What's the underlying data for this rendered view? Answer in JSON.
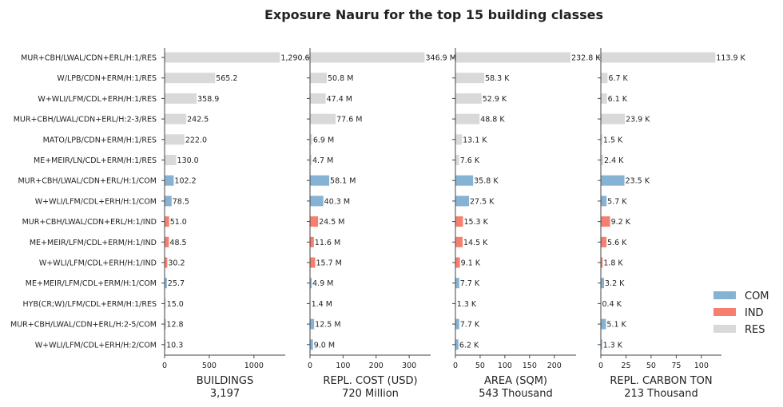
{
  "chart_data": {
    "type": "bar",
    "orientation": "horizontal",
    "title": "Exposure Nauru for the top 15 building classes",
    "categories": [
      "MUR+CBH/LWAL/CDN+ERL/H:1/RES",
      "W/LPB/CDN+ERM/H:1/RES",
      "W+WLI/LFM/CDL+ERH/H:1/RES",
      "MUR+CBH/LWAL/CDN+ERL/H:2-3/RES",
      "MATO/LPB/CDN+ERM/H:1/RES",
      "ME+MEIR/LN/CDL+ERM/H:1/RES",
      "MUR+CBH/LWAL/CDN+ERL/H:1/COM",
      "W+WLI/LFM/CDL+ERH/H:1/COM",
      "MUR+CBH/LWAL/CDN+ERL/H:1/IND",
      "ME+MEIR/LFM/CDL+ERM/H:1/IND",
      "W+WLI/LFM/CDL+ERH/H:1/IND",
      "ME+MEIR/LFM/CDL+ERM/H:1/COM",
      "HYB(CR;W)/LFM/CDL+ERM/H:1/RES",
      "MUR+CBH/LWAL/CDN+ERL/H:2-5/COM",
      "W+WLI/LFM/CDL+ERH/H:2/COM"
    ],
    "occupancy": [
      "RES",
      "RES",
      "RES",
      "RES",
      "RES",
      "RES",
      "COM",
      "COM",
      "IND",
      "IND",
      "IND",
      "COM",
      "RES",
      "COM",
      "COM"
    ],
    "panels": [
      {
        "name": "buildings",
        "xlabel": "BUILDINGS",
        "total": "3,197",
        "xlim": [
          0,
          1350
        ],
        "ticks": [
          0,
          500,
          1000
        ],
        "values": [
          1290.6,
          565.2,
          358.9,
          242.5,
          222.0,
          130.0,
          102.2,
          78.5,
          51.0,
          48.5,
          30.2,
          25.7,
          15.0,
          12.8,
          10.3
        ],
        "labels": [
          "1,290.6",
          "565.2",
          "358.9",
          "242.5",
          "222.0",
          "130.0",
          "102.2",
          "78.5",
          "51.0",
          "48.5",
          "30.2",
          "25.7",
          "15.0",
          "12.8",
          "10.3"
        ]
      },
      {
        "name": "repl-cost",
        "xlabel": "REPL. COST (USD)",
        "total": "720 Million",
        "xlim": [
          0,
          365
        ],
        "ticks": [
          0,
          100,
          200,
          300
        ],
        "values": [
          346.9,
          50.8,
          47.4,
          77.6,
          6.9,
          4.7,
          58.1,
          40.3,
          24.5,
          11.6,
          15.7,
          4.9,
          1.4,
          12.5,
          9.0
        ],
        "labels": [
          "346.9 M",
          "50.8 M",
          "47.4 M",
          "77.6 M",
          "6.9 M",
          "4.7 M",
          "58.1 M",
          "40.3 M",
          "24.5 M",
          "11.6 M",
          "15.7 M",
          "4.9 M",
          "1.4 M",
          "12.5 M",
          "9.0 M"
        ]
      },
      {
        "name": "area",
        "xlabel": "AREA (SQM)",
        "total": "543 Thousand",
        "xlim": [
          0,
          244
        ],
        "ticks": [
          0,
          50,
          100,
          150,
          200
        ],
        "values": [
          232.8,
          58.3,
          52.9,
          48.8,
          13.1,
          7.6,
          35.8,
          27.5,
          15.3,
          14.5,
          9.1,
          7.7,
          1.3,
          7.7,
          6.2
        ],
        "labels": [
          "232.8 K",
          "58.3 K",
          "52.9 K",
          "48.8 K",
          "13.1 K",
          "7.6 K",
          "35.8 K",
          "27.5 K",
          "15.3 K",
          "14.5 K",
          "9.1 K",
          "7.7 K",
          "1.3 K",
          "7.7 K",
          "6.2 K"
        ]
      },
      {
        "name": "repl-carbon",
        "xlabel": "REPL. CARBON TON",
        "total": "213 Thousand",
        "xlim": [
          0,
          120
        ],
        "ticks": [
          0,
          25,
          50,
          75,
          100
        ],
        "values": [
          113.9,
          6.7,
          6.1,
          23.9,
          1.5,
          2.4,
          23.5,
          5.7,
          9.2,
          5.6,
          1.8,
          3.2,
          0.4,
          5.1,
          1.3
        ],
        "labels": [
          "113.9 K",
          "6.7 K",
          "6.1 K",
          "23.9 K",
          "1.5 K",
          "2.4 K",
          "23.5 K",
          "5.7 K",
          "9.2 K",
          "5.6 K",
          "1.8 K",
          "3.2 K",
          "0.4 K",
          "5.1 K",
          "1.3 K"
        ]
      }
    ],
    "legend": {
      "placement": "lower-right",
      "entries": [
        {
          "name": "COM",
          "color": "#86b3d4"
        },
        {
          "name": "IND",
          "color": "#f77f6f"
        },
        {
          "name": "RES",
          "color": "#d9d9d9"
        }
      ]
    },
    "grid": false
  }
}
